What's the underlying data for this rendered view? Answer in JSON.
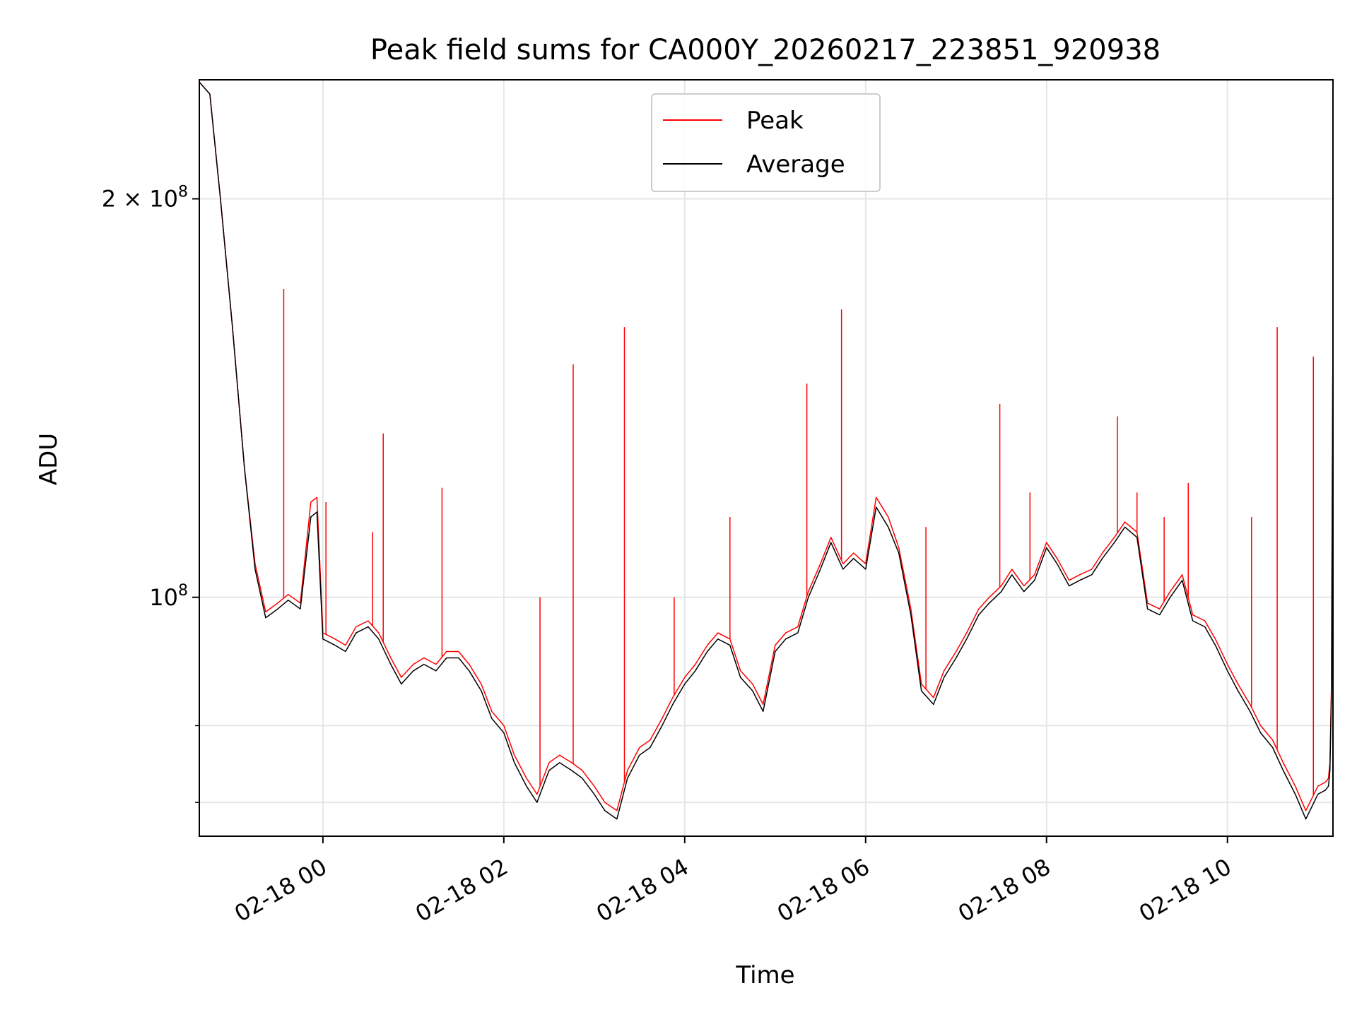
{
  "chart_data": {
    "type": "line",
    "title": "Peak field sums for CA000Y_20260217_223851_920938",
    "xlabel": "Time",
    "ylabel": "ADU",
    "yscale": "log",
    "grid": true,
    "legend_position": "top-center",
    "xlim": [
      "2026-02-17 22:38",
      "2026-02-18 11:10"
    ],
    "ylim": [
      66000000,
      246000000
    ],
    "x_ticks": [
      {
        "t": "2026-02-18 00:00",
        "label": "02-18 00"
      },
      {
        "t": "2026-02-18 02:00",
        "label": "02-18 02"
      },
      {
        "t": "2026-02-18 04:00",
        "label": "02-18 04"
      },
      {
        "t": "2026-02-18 06:00",
        "label": "02-18 06"
      },
      {
        "t": "2026-02-18 08:00",
        "label": "02-18 08"
      },
      {
        "t": "2026-02-18 10:00",
        "label": "02-18 10"
      }
    ],
    "y_ticks": [
      {
        "value": 100000000,
        "label_base": "10",
        "label_exp": "8",
        "label_coef": ""
      },
      {
        "value": 200000000,
        "label_base": "10",
        "label_exp": "8",
        "label_coef": "2 × "
      }
    ],
    "y_minor_gridlines": [
      70000000,
      80000000
    ],
    "series": [
      {
        "name": "Average",
        "color": "#000000",
        "points": [
          [
            "2026-02-17 22:38",
            245000000
          ],
          [
            "2026-02-17 22:45",
            240000000
          ],
          [
            "2026-02-17 22:52",
            200000000
          ],
          [
            "2026-02-17 23:00",
            160000000
          ],
          [
            "2026-02-17 23:08",
            125000000
          ],
          [
            "2026-02-17 23:15",
            105000000
          ],
          [
            "2026-02-17 23:22",
            96500000
          ],
          [
            "2026-02-17 23:30",
            98000000
          ],
          [
            "2026-02-17 23:37",
            99500000
          ],
          [
            "2026-02-17 23:45",
            98000000
          ],
          [
            "2026-02-17 23:52",
            115000000
          ],
          [
            "2026-02-17 23:56",
            116000000
          ],
          [
            "2026-02-18 00:00",
            93000000
          ],
          [
            "2026-02-18 00:08",
            92000000
          ],
          [
            "2026-02-18 00:15",
            91000000
          ],
          [
            "2026-02-18 00:22",
            94000000
          ],
          [
            "2026-02-18 00:30",
            95000000
          ],
          [
            "2026-02-18 00:37",
            93000000
          ],
          [
            "2026-02-18 00:45",
            89000000
          ],
          [
            "2026-02-18 00:52",
            86000000
          ],
          [
            "2026-02-18 01:00",
            88000000
          ],
          [
            "2026-02-18 01:07",
            89000000
          ],
          [
            "2026-02-18 01:15",
            88000000
          ],
          [
            "2026-02-18 01:22",
            90000000
          ],
          [
            "2026-02-18 01:30",
            90000000
          ],
          [
            "2026-02-18 01:37",
            88000000
          ],
          [
            "2026-02-18 01:45",
            85000000
          ],
          [
            "2026-02-18 01:52",
            81000000
          ],
          [
            "2026-02-18 02:00",
            79000000
          ],
          [
            "2026-02-18 02:07",
            75000000
          ],
          [
            "2026-02-18 02:15",
            72000000
          ],
          [
            "2026-02-18 02:22",
            70000000
          ],
          [
            "2026-02-18 02:30",
            74000000
          ],
          [
            "2026-02-18 02:37",
            75000000
          ],
          [
            "2026-02-18 02:45",
            74000000
          ],
          [
            "2026-02-18 02:52",
            73000000
          ],
          [
            "2026-02-18 03:00",
            71000000
          ],
          [
            "2026-02-18 03:07",
            69000000
          ],
          [
            "2026-02-18 03:15",
            68000000
          ],
          [
            "2026-02-18 03:22",
            73000000
          ],
          [
            "2026-02-18 03:30",
            76000000
          ],
          [
            "2026-02-18 03:37",
            77000000
          ],
          [
            "2026-02-18 03:45",
            80000000
          ],
          [
            "2026-02-18 03:52",
            83000000
          ],
          [
            "2026-02-18 04:00",
            86000000
          ],
          [
            "2026-02-18 04:07",
            88000000
          ],
          [
            "2026-02-18 04:15",
            91000000
          ],
          [
            "2026-02-18 04:22",
            93000000
          ],
          [
            "2026-02-18 04:30",
            92000000
          ],
          [
            "2026-02-18 04:37",
            87000000
          ],
          [
            "2026-02-18 04:45",
            85000000
          ],
          [
            "2026-02-18 04:52",
            82000000
          ],
          [
            "2026-02-18 05:00",
            91000000
          ],
          [
            "2026-02-18 05:07",
            93000000
          ],
          [
            "2026-02-18 05:15",
            94000000
          ],
          [
            "2026-02-18 05:22",
            100000000
          ],
          [
            "2026-02-18 05:30",
            105000000
          ],
          [
            "2026-02-18 05:37",
            110000000
          ],
          [
            "2026-02-18 05:45",
            105000000
          ],
          [
            "2026-02-18 05:52",
            107000000
          ],
          [
            "2026-02-18 06:00",
            105000000
          ],
          [
            "2026-02-18 06:07",
            117000000
          ],
          [
            "2026-02-18 06:15",
            113000000
          ],
          [
            "2026-02-18 06:22",
            108000000
          ],
          [
            "2026-02-18 06:30",
            97000000
          ],
          [
            "2026-02-18 06:37",
            85000000
          ],
          [
            "2026-02-18 06:45",
            83000000
          ],
          [
            "2026-02-18 06:52",
            87000000
          ],
          [
            "2026-02-18 07:00",
            90000000
          ],
          [
            "2026-02-18 07:07",
            93000000
          ],
          [
            "2026-02-18 07:15",
            97000000
          ],
          [
            "2026-02-18 07:22",
            99000000
          ],
          [
            "2026-02-18 07:30",
            101000000
          ],
          [
            "2026-02-18 07:37",
            104000000
          ],
          [
            "2026-02-18 07:45",
            101000000
          ],
          [
            "2026-02-18 07:52",
            103000000
          ],
          [
            "2026-02-18 08:00",
            109000000
          ],
          [
            "2026-02-18 08:07",
            106000000
          ],
          [
            "2026-02-18 08:15",
            102000000
          ],
          [
            "2026-02-18 08:22",
            103000000
          ],
          [
            "2026-02-18 08:30",
            104000000
          ],
          [
            "2026-02-18 08:37",
            107000000
          ],
          [
            "2026-02-18 08:45",
            110000000
          ],
          [
            "2026-02-18 08:52",
            113000000
          ],
          [
            "2026-02-18 09:00",
            111000000
          ],
          [
            "2026-02-18 09:07",
            98000000
          ],
          [
            "2026-02-18 09:15",
            97000000
          ],
          [
            "2026-02-18 09:22",
            100000000
          ],
          [
            "2026-02-18 09:30",
            103000000
          ],
          [
            "2026-02-18 09:37",
            96000000
          ],
          [
            "2026-02-18 09:45",
            95000000
          ],
          [
            "2026-02-18 09:52",
            92000000
          ],
          [
            "2026-02-18 10:00",
            88000000
          ],
          [
            "2026-02-18 10:07",
            85000000
          ],
          [
            "2026-02-18 10:15",
            82000000
          ],
          [
            "2026-02-18 10:22",
            79000000
          ],
          [
            "2026-02-18 10:30",
            77000000
          ],
          [
            "2026-02-18 10:37",
            74000000
          ],
          [
            "2026-02-18 10:45",
            71000000
          ],
          [
            "2026-02-18 10:52",
            68000000
          ],
          [
            "2026-02-18 11:00",
            71000000
          ],
          [
            "2026-02-18 11:05",
            71500000
          ],
          [
            "2026-02-18 11:07",
            72000000
          ],
          [
            "2026-02-18 11:08",
            74000000
          ],
          [
            "2026-02-18 11:09",
            85000000
          ],
          [
            "2026-02-18 11:10",
            160000000
          ]
        ]
      },
      {
        "name": "Peak",
        "color": "#ff0000",
        "points": [
          [
            "2026-02-17 22:38",
            245000000
          ],
          [
            "2026-02-17 22:45",
            240000000
          ],
          [
            "2026-02-17 22:52",
            200000000
          ],
          [
            "2026-02-17 23:00",
            160000000
          ],
          [
            "2026-02-17 23:08",
            125000000
          ],
          [
            "2026-02-17 23:15",
            106000000
          ],
          [
            "2026-02-17 23:22",
            97500000
          ],
          [
            "2026-02-17 23:30",
            99000000
          ],
          [
            "2026-02-17 23:37",
            100500000
          ],
          [
            "2026-02-17 23:45",
            99000000
          ],
          [
            "2026-02-17 23:52",
            118000000
          ],
          [
            "2026-02-17 23:56",
            119000000
          ],
          [
            "2026-02-18 00:00",
            94000000
          ],
          [
            "2026-02-18 00:08",
            93000000
          ],
          [
            "2026-02-18 00:15",
            92000000
          ],
          [
            "2026-02-18 00:22",
            95000000
          ],
          [
            "2026-02-18 00:30",
            96000000
          ],
          [
            "2026-02-18 00:37",
            94000000
          ],
          [
            "2026-02-18 00:45",
            90000000
          ],
          [
            "2026-02-18 00:52",
            87000000
          ],
          [
            "2026-02-18 01:00",
            89000000
          ],
          [
            "2026-02-18 01:07",
            90000000
          ],
          [
            "2026-02-18 01:15",
            89000000
          ],
          [
            "2026-02-18 01:22",
            91000000
          ],
          [
            "2026-02-18 01:30",
            91000000
          ],
          [
            "2026-02-18 01:37",
            89000000
          ],
          [
            "2026-02-18 01:45",
            86000000
          ],
          [
            "2026-02-18 01:52",
            82000000
          ],
          [
            "2026-02-18 02:00",
            80000000
          ],
          [
            "2026-02-18 02:07",
            76000000
          ],
          [
            "2026-02-18 02:15",
            73000000
          ],
          [
            "2026-02-18 02:22",
            71000000
          ],
          [
            "2026-02-18 02:30",
            75000000
          ],
          [
            "2026-02-18 02:37",
            76000000
          ],
          [
            "2026-02-18 02:45",
            75000000
          ],
          [
            "2026-02-18 02:52",
            74000000
          ],
          [
            "2026-02-18 03:00",
            72000000
          ],
          [
            "2026-02-18 03:07",
            70000000
          ],
          [
            "2026-02-18 03:15",
            69000000
          ],
          [
            "2026-02-18 03:22",
            74000000
          ],
          [
            "2026-02-18 03:30",
            77000000
          ],
          [
            "2026-02-18 03:37",
            78000000
          ],
          [
            "2026-02-18 03:45",
            81000000
          ],
          [
            "2026-02-18 03:52",
            84000000
          ],
          [
            "2026-02-18 04:00",
            87000000
          ],
          [
            "2026-02-18 04:07",
            89000000
          ],
          [
            "2026-02-18 04:15",
            92000000
          ],
          [
            "2026-02-18 04:22",
            94000000
          ],
          [
            "2026-02-18 04:30",
            93000000
          ],
          [
            "2026-02-18 04:37",
            88000000
          ],
          [
            "2026-02-18 04:45",
            86000000
          ],
          [
            "2026-02-18 04:52",
            83000000
          ],
          [
            "2026-02-18 05:00",
            92000000
          ],
          [
            "2026-02-18 05:07",
            94000000
          ],
          [
            "2026-02-18 05:15",
            95000000
          ],
          [
            "2026-02-18 05:22",
            101000000
          ],
          [
            "2026-02-18 05:30",
            106000000
          ],
          [
            "2026-02-18 05:37",
            111000000
          ],
          [
            "2026-02-18 05:45",
            106000000
          ],
          [
            "2026-02-18 05:52",
            108000000
          ],
          [
            "2026-02-18 06:00",
            106000000
          ],
          [
            "2026-02-18 06:07",
            119000000
          ],
          [
            "2026-02-18 06:15",
            115000000
          ],
          [
            "2026-02-18 06:22",
            109000000
          ],
          [
            "2026-02-18 06:30",
            98000000
          ],
          [
            "2026-02-18 06:37",
            86000000
          ],
          [
            "2026-02-18 06:45",
            84000000
          ],
          [
            "2026-02-18 06:52",
            88000000
          ],
          [
            "2026-02-18 07:00",
            91000000
          ],
          [
            "2026-02-18 07:07",
            94000000
          ],
          [
            "2026-02-18 07:15",
            98000000
          ],
          [
            "2026-02-18 07:22",
            100000000
          ],
          [
            "2026-02-18 07:30",
            102000000
          ],
          [
            "2026-02-18 07:37",
            105000000
          ],
          [
            "2026-02-18 07:45",
            102000000
          ],
          [
            "2026-02-18 07:52",
            104000000
          ],
          [
            "2026-02-18 08:00",
            110000000
          ],
          [
            "2026-02-18 08:07",
            107000000
          ],
          [
            "2026-02-18 08:15",
            103000000
          ],
          [
            "2026-02-18 08:22",
            104000000
          ],
          [
            "2026-02-18 08:30",
            105000000
          ],
          [
            "2026-02-18 08:37",
            108000000
          ],
          [
            "2026-02-18 08:45",
            111000000
          ],
          [
            "2026-02-18 08:52",
            114000000
          ],
          [
            "2026-02-18 09:00",
            112000000
          ],
          [
            "2026-02-18 09:07",
            99000000
          ],
          [
            "2026-02-18 09:15",
            98000000
          ],
          [
            "2026-02-18 09:22",
            101000000
          ],
          [
            "2026-02-18 09:30",
            104000000
          ],
          [
            "2026-02-18 09:37",
            97000000
          ],
          [
            "2026-02-18 09:45",
            96000000
          ],
          [
            "2026-02-18 09:52",
            93000000
          ],
          [
            "2026-02-18 10:00",
            89000000
          ],
          [
            "2026-02-18 10:07",
            86000000
          ],
          [
            "2026-02-18 10:15",
            83000000
          ],
          [
            "2026-02-18 10:22",
            80000000
          ],
          [
            "2026-02-18 10:30",
            78000000
          ],
          [
            "2026-02-18 10:37",
            75000000
          ],
          [
            "2026-02-18 10:45",
            72000000
          ],
          [
            "2026-02-18 10:52",
            69000000
          ],
          [
            "2026-02-18 11:00",
            72000000
          ],
          [
            "2026-02-18 11:05",
            72500000
          ],
          [
            "2026-02-18 11:07",
            73000000
          ],
          [
            "2026-02-18 11:08",
            75000000
          ],
          [
            "2026-02-18 11:09",
            86000000
          ],
          [
            "2026-02-18 11:10",
            162000000
          ]
        ],
        "spikes": [
          [
            "2026-02-17 23:34",
            171000000
          ],
          [
            "2026-02-18 00:02",
            118000000
          ],
          [
            "2026-02-18 00:33",
            112000000
          ],
          [
            "2026-02-18 00:40",
            133000000
          ],
          [
            "2026-02-18 01:19",
            121000000
          ],
          [
            "2026-02-18 02:24",
            100000000
          ],
          [
            "2026-02-18 02:46",
            150000000
          ],
          [
            "2026-02-18 03:20",
            160000000
          ],
          [
            "2026-02-18 03:53",
            100000000
          ],
          [
            "2026-02-18 04:30",
            115000000
          ],
          [
            "2026-02-18 05:21",
            145000000
          ],
          [
            "2026-02-18 05:44",
            165000000
          ],
          [
            "2026-02-18 06:40",
            113000000
          ],
          [
            "2026-02-18 07:29",
            140000000
          ],
          [
            "2026-02-18 07:49",
            120000000
          ],
          [
            "2026-02-18 08:47",
            137000000
          ],
          [
            "2026-02-18 09:00",
            120000000
          ],
          [
            "2026-02-18 09:18",
            115000000
          ],
          [
            "2026-02-18 09:34",
            122000000
          ],
          [
            "2026-02-18 10:16",
            115000000
          ],
          [
            "2026-02-18 10:33",
            160000000
          ],
          [
            "2026-02-18 10:57",
            152000000
          ]
        ]
      }
    ]
  }
}
